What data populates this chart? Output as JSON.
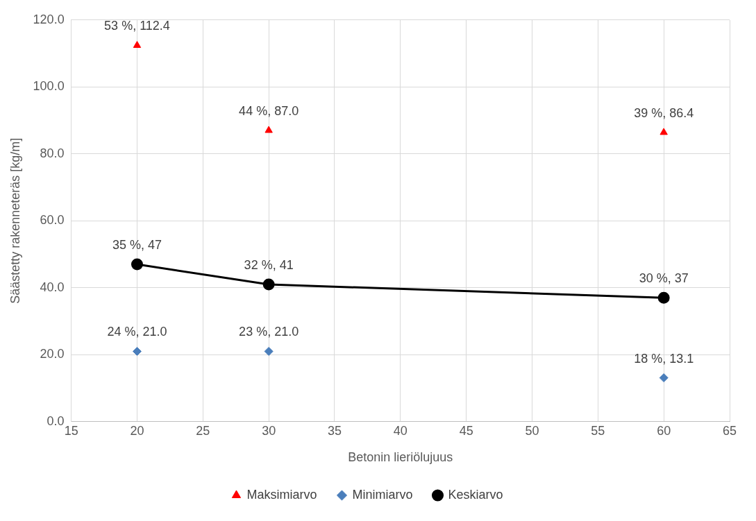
{
  "chart_data": {
    "type": "scatter",
    "xlabel": "Betonin lieriölujuus",
    "ylabel": "Säästetty rakenneteräs [kg/m]",
    "xlim": [
      15,
      65
    ],
    "xticks": [
      15,
      20,
      25,
      30,
      35,
      40,
      45,
      50,
      55,
      60,
      65
    ],
    "ylim": [
      0,
      120
    ],
    "yticks": [
      {
        "value": 0,
        "label": "0.0"
      },
      {
        "value": 20,
        "label": "20.0"
      },
      {
        "value": 40,
        "label": "40.0"
      },
      {
        "value": 60,
        "label": "60.0"
      },
      {
        "value": 80,
        "label": "80.0"
      },
      {
        "value": 100,
        "label": "100.0"
      },
      {
        "value": 120,
        "label": "120.0"
      }
    ],
    "grid": true,
    "legend": "bottom",
    "series": [
      {
        "name": "Maksimiarvo",
        "marker": "triangle",
        "color": "#ff0000",
        "x": [
          20,
          30,
          60
        ],
        "values": [
          112.4,
          87.0,
          86.4
        ],
        "value_labels": [
          "53 %, 112.4",
          "44 %, 87.0",
          "39 %, 86.4"
        ]
      },
      {
        "name": "Minimiarvo",
        "marker": "diamond",
        "color": "#4a7ebb",
        "x": [
          20,
          30,
          60
        ],
        "values": [
          21.0,
          21.0,
          13.1
        ],
        "value_labels": [
          "24 %, 21.0",
          "23 %, 21.0",
          "18 %, 13.1"
        ]
      },
      {
        "name": "Keskiarvo",
        "type": "line",
        "marker": "circle",
        "line_style": "solid",
        "color": "#000000",
        "x": [
          20,
          30,
          60
        ],
        "values": [
          47,
          41,
          37
        ],
        "value_labels": [
          "35 %, 47",
          "32 %, 41",
          "30 %, 37"
        ]
      }
    ]
  }
}
